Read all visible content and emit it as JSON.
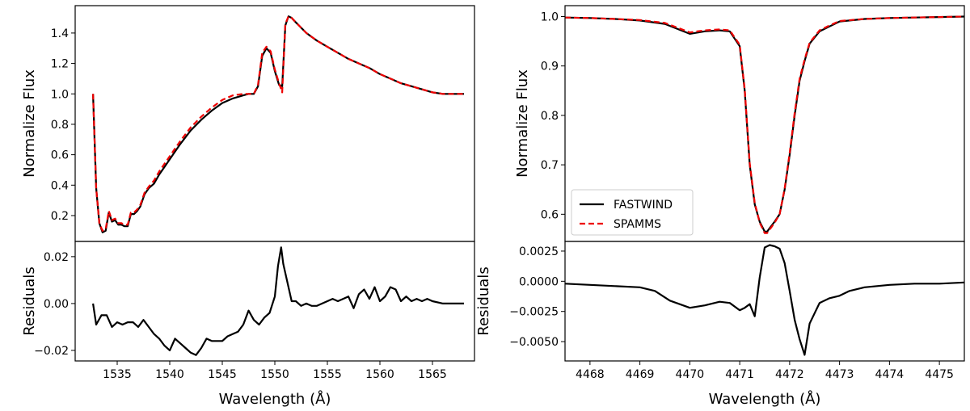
{
  "figure": {
    "background": "#ffffff"
  },
  "chart_data": [
    {
      "id": "left-main",
      "type": "line",
      "xlim": [
        1531,
        1569
      ],
      "ylim": [
        0.03,
        1.58
      ],
      "xticks": [],
      "xlabel": "",
      "yticks": [
        0.2,
        0.4,
        0.6,
        0.8,
        1.0,
        1.2,
        1.4
      ],
      "ytick_labels": [
        "0.2",
        "0.4",
        "0.6",
        "0.8",
        "1.0",
        "1.2",
        "1.4"
      ],
      "ylabel": "Normalize Flux",
      "series": [
        {
          "name": "FASTWIND",
          "color": "#000000",
          "dash": "solid",
          "x": [
            1532.7,
            1533.0,
            1533.3,
            1533.6,
            1533.9,
            1534.2,
            1534.5,
            1534.8,
            1535.1,
            1535.4,
            1535.7,
            1536.0,
            1536.3,
            1536.6,
            1536.9,
            1537.2,
            1537.6,
            1538.0,
            1538.5,
            1539.0,
            1539.5,
            1540.0,
            1541.0,
            1542.0,
            1543.0,
            1544.0,
            1545.0,
            1546.0,
            1547.0,
            1547.5,
            1548.0,
            1548.4,
            1548.8,
            1549.2,
            1549.6,
            1550.0,
            1550.4,
            1550.7,
            1551.0,
            1551.3,
            1551.6,
            1552.0,
            1553.0,
            1554.0,
            1555.0,
            1556.0,
            1557.0,
            1558.0,
            1559.0,
            1560.0,
            1561.0,
            1562.0,
            1563.0,
            1564.0,
            1565.0,
            1566.0,
            1567.0,
            1568.0
          ],
          "y": [
            1.0,
            0.38,
            0.15,
            0.09,
            0.1,
            0.22,
            0.16,
            0.17,
            0.14,
            0.14,
            0.13,
            0.13,
            0.21,
            0.21,
            0.23,
            0.26,
            0.34,
            0.38,
            0.41,
            0.47,
            0.52,
            0.57,
            0.67,
            0.76,
            0.83,
            0.89,
            0.94,
            0.97,
            0.99,
            1.0,
            1.0,
            1.05,
            1.25,
            1.3,
            1.27,
            1.15,
            1.06,
            1.05,
            1.45,
            1.51,
            1.5,
            1.47,
            1.4,
            1.35,
            1.31,
            1.27,
            1.23,
            1.2,
            1.17,
            1.13,
            1.1,
            1.07,
            1.05,
            1.03,
            1.01,
            1.0,
            1.0,
            1.0
          ]
        },
        {
          "name": "SPAMMS",
          "color": "#ee0000",
          "dash": "dashed",
          "x": [
            1532.7,
            1533.0,
            1533.3,
            1533.6,
            1533.9,
            1534.2,
            1534.5,
            1534.8,
            1535.1,
            1535.4,
            1535.7,
            1536.0,
            1536.3,
            1536.6,
            1536.9,
            1537.2,
            1537.6,
            1538.0,
            1538.5,
            1539.0,
            1539.5,
            1540.0,
            1541.0,
            1542.0,
            1543.0,
            1544.0,
            1545.0,
            1546.0,
            1547.0,
            1547.5,
            1548.0,
            1548.4,
            1548.8,
            1549.2,
            1549.6,
            1550.0,
            1550.4,
            1550.7,
            1551.0,
            1551.3,
            1551.6,
            1552.0,
            1553.0,
            1554.0,
            1555.0,
            1556.0,
            1557.0,
            1558.0,
            1559.0,
            1560.0,
            1561.0,
            1562.0,
            1563.0,
            1564.0,
            1565.0,
            1566.0,
            1567.0,
            1568.0
          ],
          "y": [
            1.0,
            0.38,
            0.15,
            0.1,
            0.11,
            0.23,
            0.17,
            0.18,
            0.15,
            0.15,
            0.14,
            0.14,
            0.22,
            0.22,
            0.24,
            0.27,
            0.35,
            0.39,
            0.43,
            0.49,
            0.54,
            0.59,
            0.69,
            0.78,
            0.85,
            0.91,
            0.96,
            0.99,
            1.0,
            1.0,
            1.0,
            1.06,
            1.27,
            1.31,
            1.28,
            1.16,
            1.07,
            1.01,
            1.46,
            1.51,
            1.5,
            1.47,
            1.4,
            1.35,
            1.31,
            1.27,
            1.23,
            1.2,
            1.17,
            1.13,
            1.1,
            1.07,
            1.05,
            1.03,
            1.01,
            1.0,
            1.0,
            1.0
          ]
        }
      ]
    },
    {
      "id": "left-resid",
      "type": "line",
      "xlim": [
        1531,
        1569
      ],
      "ylim": [
        -0.0245,
        0.0265
      ],
      "xticks": [
        1535,
        1540,
        1545,
        1550,
        1555,
        1560,
        1565
      ],
      "xtick_labels": [
        "1535",
        "1540",
        "1545",
        "1550",
        "1555",
        "1560",
        "1565"
      ],
      "xlabel": "Wavelength (Å)",
      "yticks": [
        -0.02,
        0.0,
        0.02
      ],
      "ytick_labels": [
        "−0.02",
        "0.00",
        "0.02"
      ],
      "ylabel": "Residuals",
      "series": [
        {
          "name": "residual",
          "color": "#000000",
          "dash": "solid",
          "x": [
            1532.7,
            1533.0,
            1533.5,
            1534.0,
            1534.5,
            1535.0,
            1535.5,
            1536.0,
            1536.5,
            1537.0,
            1537.5,
            1538.0,
            1538.5,
            1539.0,
            1539.5,
            1540.0,
            1540.5,
            1541.0,
            1541.5,
            1542.0,
            1542.5,
            1543.0,
            1543.5,
            1544.0,
            1544.5,
            1545.0,
            1545.5,
            1546.0,
            1546.5,
            1547.0,
            1547.5,
            1548.0,
            1548.5,
            1549.0,
            1549.5,
            1550.0,
            1550.3,
            1550.6,
            1550.8,
            1551.0,
            1551.3,
            1551.6,
            1552.0,
            1552.5,
            1553.0,
            1553.5,
            1554.0,
            1554.5,
            1555.0,
            1555.5,
            1556.0,
            1556.5,
            1557.0,
            1557.5,
            1558.0,
            1558.5,
            1559.0,
            1559.5,
            1560.0,
            1560.5,
            1561.0,
            1561.5,
            1562.0,
            1562.5,
            1563.0,
            1563.5,
            1564.0,
            1564.5,
            1565.0,
            1566.0,
            1567.0,
            1568.0
          ],
          "y": [
            0.0,
            -0.009,
            -0.005,
            -0.005,
            -0.01,
            -0.008,
            -0.009,
            -0.008,
            -0.008,
            -0.01,
            -0.007,
            -0.01,
            -0.013,
            -0.015,
            -0.018,
            -0.02,
            -0.015,
            -0.017,
            -0.019,
            -0.021,
            -0.022,
            -0.019,
            -0.015,
            -0.016,
            -0.016,
            -0.016,
            -0.014,
            -0.013,
            -0.012,
            -0.009,
            -0.003,
            -0.007,
            -0.009,
            -0.006,
            -0.004,
            0.003,
            0.016,
            0.024,
            0.017,
            0.013,
            0.007,
            0.001,
            0.001,
            -0.001,
            0.0,
            -0.001,
            -0.001,
            0.0,
            0.001,
            0.002,
            0.001,
            0.002,
            0.003,
            -0.002,
            0.004,
            0.006,
            0.002,
            0.007,
            0.001,
            0.003,
            0.007,
            0.006,
            0.001,
            0.003,
            0.001,
            0.002,
            0.001,
            0.002,
            0.001,
            0.0,
            0.0,
            0.0
          ]
        }
      ]
    },
    {
      "id": "right-main",
      "type": "line",
      "xlim": [
        4467.5,
        4475.5
      ],
      "ylim": [
        0.545,
        1.022
      ],
      "xticks": [],
      "xlabel": "",
      "yticks": [
        0.6,
        0.7,
        0.8,
        0.9,
        1.0
      ],
      "ytick_labels": [
        "0.6",
        "0.7",
        "0.8",
        "0.9",
        "1.0"
      ],
      "ylabel": "Normalize Flux",
      "legend": {
        "position": "lower-left",
        "entries": [
          "FASTWIND",
          "SPAMMS"
        ]
      },
      "series": [
        {
          "name": "FASTWIND",
          "color": "#000000",
          "dash": "solid",
          "x": [
            4467.5,
            4468.0,
            4468.5,
            4469.0,
            4469.5,
            4470.0,
            4470.3,
            4470.6,
            4470.8,
            4471.0,
            4471.1,
            4471.2,
            4471.3,
            4471.4,
            4471.5,
            4471.55,
            4471.6,
            4471.7,
            4471.8,
            4471.9,
            4472.0,
            4472.1,
            4472.2,
            4472.3,
            4472.4,
            4472.6,
            4472.8,
            4473.0,
            4473.5,
            4474.0,
            4474.5,
            4475.0,
            4475.5
          ],
          "y": [
            0.998,
            0.997,
            0.995,
            0.992,
            0.985,
            0.965,
            0.97,
            0.972,
            0.97,
            0.94,
            0.85,
            0.7,
            0.62,
            0.585,
            0.565,
            0.565,
            0.572,
            0.585,
            0.6,
            0.65,
            0.72,
            0.8,
            0.87,
            0.91,
            0.945,
            0.97,
            0.98,
            0.99,
            0.995,
            0.997,
            0.998,
            0.999,
            1.0
          ]
        },
        {
          "name": "SPAMMS",
          "color": "#ee0000",
          "dash": "dashed",
          "x": [
            4467.5,
            4468.0,
            4468.5,
            4469.0,
            4469.5,
            4470.0,
            4470.3,
            4470.6,
            4470.8,
            4471.0,
            4471.1,
            4471.2,
            4471.3,
            4471.4,
            4471.5,
            4471.55,
            4471.6,
            4471.7,
            4471.8,
            4471.9,
            4472.0,
            4472.1,
            4472.2,
            4472.3,
            4472.4,
            4472.6,
            4472.8,
            4473.0,
            4473.5,
            4474.0,
            4474.5,
            4475.0,
            4475.5
          ],
          "y": [
            0.998,
            0.997,
            0.995,
            0.993,
            0.987,
            0.968,
            0.972,
            0.974,
            0.972,
            0.943,
            0.853,
            0.703,
            0.623,
            0.583,
            0.562,
            0.562,
            0.569,
            0.583,
            0.6,
            0.652,
            0.724,
            0.805,
            0.874,
            0.913,
            0.947,
            0.972,
            0.982,
            0.991,
            0.995,
            0.997,
            0.998,
            0.999,
            1.0
          ]
        }
      ]
    },
    {
      "id": "right-resid",
      "type": "line",
      "xlim": [
        4467.5,
        4475.5
      ],
      "ylim": [
        -0.0066,
        0.0033
      ],
      "xticks": [
        4468,
        4469,
        4470,
        4471,
        4472,
        4473,
        4474,
        4475
      ],
      "xtick_labels": [
        "4468",
        "4469",
        "4470",
        "4471",
        "4472",
        "4473",
        "4474",
        "4475"
      ],
      "xlabel": "Wavelength (Å)",
      "yticks": [
        -0.005,
        -0.0025,
        0.0,
        0.0025
      ],
      "ytick_labels": [
        "−0.0050",
        "−0.0025",
        "0.0000",
        "0.0025"
      ],
      "ylabel": "Residuals",
      "series": [
        {
          "name": "residual",
          "color": "#000000",
          "dash": "solid",
          "x": [
            4467.5,
            4468.0,
            4468.5,
            4469.0,
            4469.3,
            4469.6,
            4470.0,
            4470.3,
            4470.6,
            4470.8,
            4471.0,
            4471.1,
            4471.2,
            4471.3,
            4471.4,
            4471.5,
            4471.6,
            4471.7,
            4471.8,
            4471.9,
            4472.0,
            4472.1,
            4472.2,
            4472.3,
            4472.4,
            4472.6,
            4472.8,
            4473.0,
            4473.2,
            4473.5,
            4474.0,
            4474.5,
            4475.0,
            4475.5
          ],
          "y": [
            -0.0002,
            -0.0003,
            -0.0004,
            -0.0005,
            -0.0008,
            -0.0016,
            -0.0022,
            -0.002,
            -0.0017,
            -0.0018,
            -0.0024,
            -0.0022,
            -0.0019,
            -0.0029,
            0.0003,
            0.0028,
            0.003,
            0.0029,
            0.0027,
            0.0015,
            -0.0008,
            -0.0032,
            -0.0048,
            -0.0061,
            -0.0035,
            -0.0018,
            -0.0014,
            -0.0012,
            -0.0008,
            -0.0005,
            -0.0003,
            -0.0002,
            -0.0002,
            -0.0001
          ]
        }
      ]
    }
  ]
}
